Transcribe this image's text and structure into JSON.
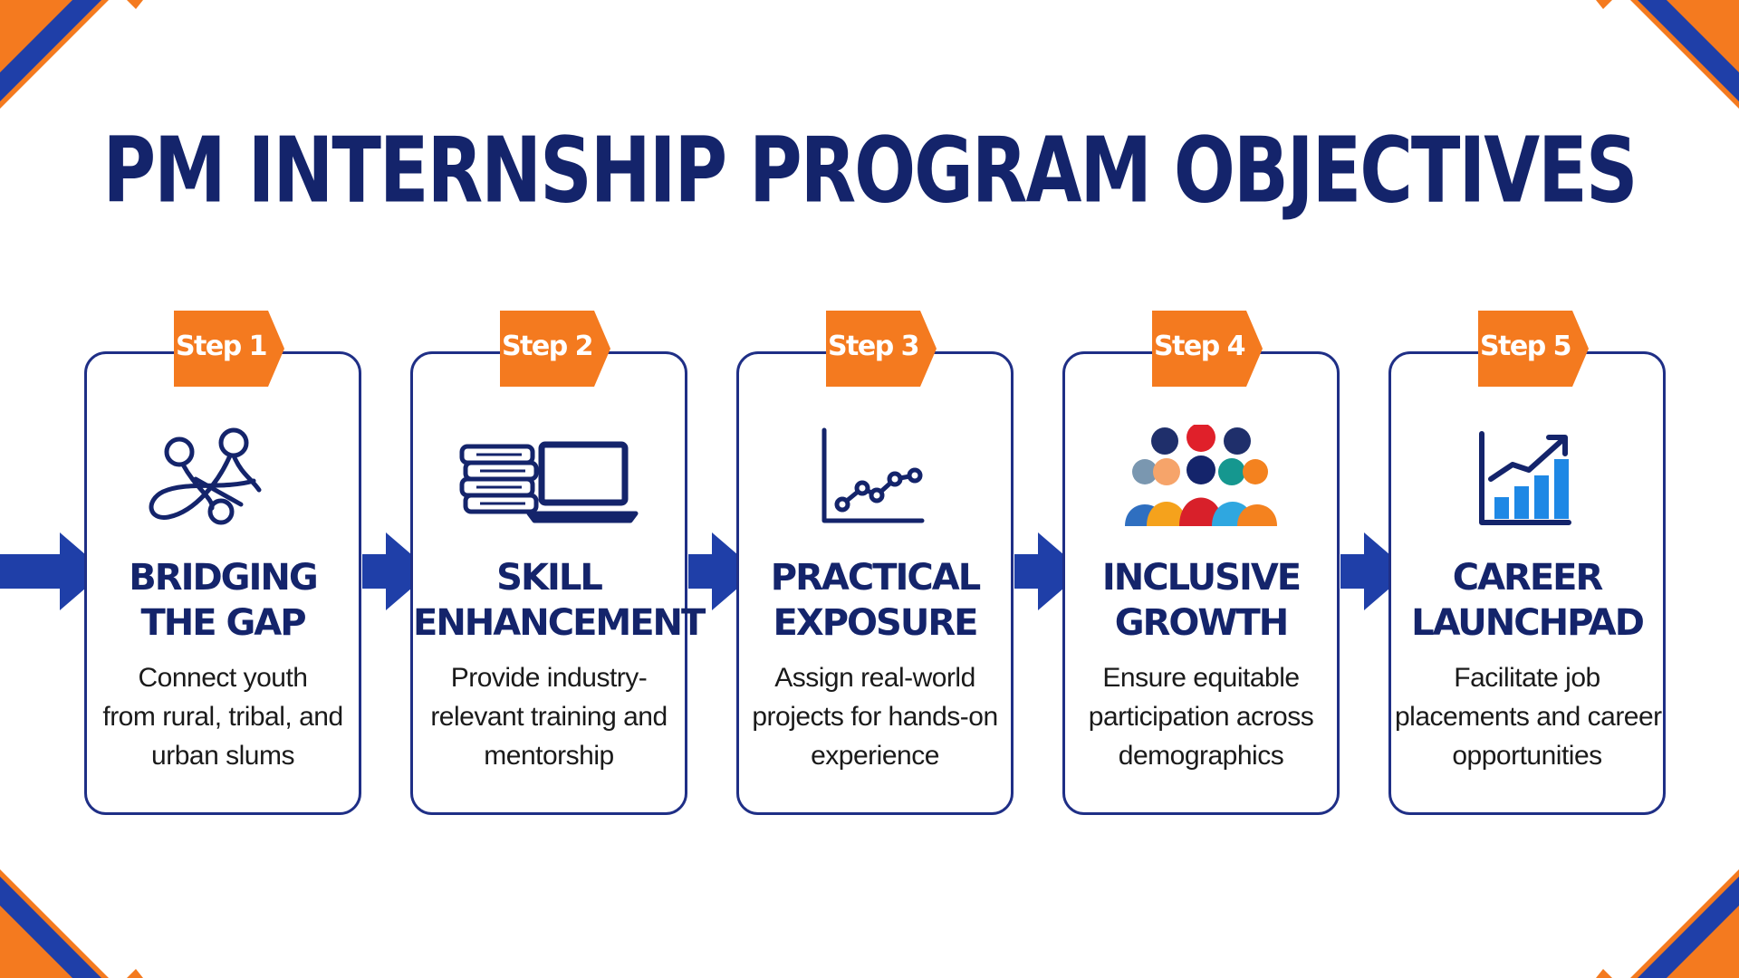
{
  "title": "PM INTERNSHIP PROGRAM OBJECTIVES",
  "colors": {
    "navy": "#14246b",
    "blue": "#1f3fa8",
    "orange": "#f47a1f",
    "border": "#1f2f86"
  },
  "steps": [
    {
      "tag": "Step 1",
      "title_lines": [
        "BRIDGING",
        "THE GAP"
      ],
      "desc_lines": [
        "Connect youth",
        "from rural, tribal, and",
        "urban slums"
      ],
      "icon": "connected-nodes-icon"
    },
    {
      "tag": "Step 2",
      "title_lines": [
        "SKILL",
        "ENHANCEMENT"
      ],
      "desc_lines": [
        "Provide industry-",
        "relevant training and",
        "mentorship"
      ],
      "icon": "books-laptop-icon"
    },
    {
      "tag": "Step 3",
      "title_lines": [
        "PRACTICAL",
        "EXPOSURE"
      ],
      "desc_lines": [
        "Assign real-world",
        "projects for hands-on",
        "experience"
      ],
      "icon": "line-chart-icon"
    },
    {
      "tag": "Step 4",
      "title_lines": [
        "INCLUSIVE",
        "GROWTH"
      ],
      "desc_lines": [
        "Ensure equitable",
        "participation across",
        "demographics"
      ],
      "icon": "people-group-icon"
    },
    {
      "tag": "Step 5",
      "title_lines": [
        "CAREER",
        "LAUNCHPAD"
      ],
      "desc_lines": [
        "Facilitate job",
        "placements and career",
        "opportunities"
      ],
      "icon": "growth-bar-chart-icon"
    }
  ]
}
